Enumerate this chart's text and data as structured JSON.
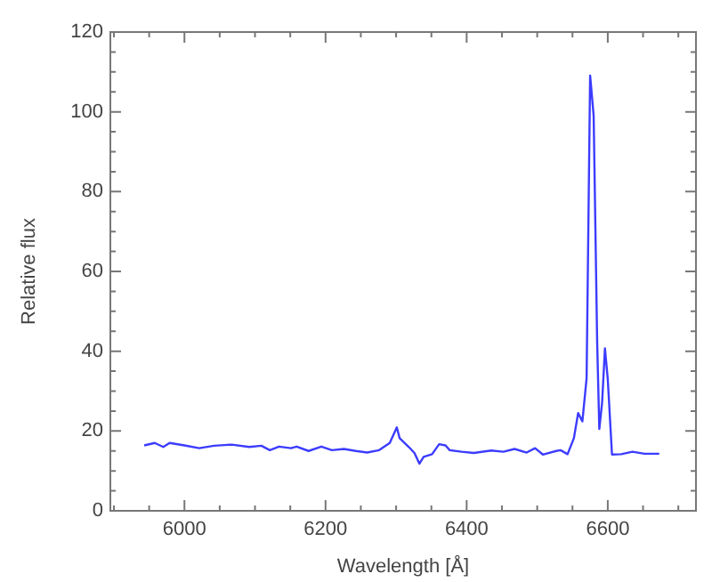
{
  "chart_data": {
    "type": "line",
    "xlabel": "Wavelength [Å]",
    "ylabel": "Relative flux",
    "xlim": [
      5895,
      6725
    ],
    "ylim": [
      0,
      120
    ],
    "xticks": [
      {
        "value": 5900,
        "label": null
      },
      {
        "value": 5950,
        "label": null
      },
      6000,
      {
        "value": 6050,
        "label": null
      },
      {
        "value": 6100,
        "label": null
      },
      {
        "value": 6150,
        "label": null
      },
      6200,
      {
        "value": 6250,
        "label": null
      },
      {
        "value": 6300,
        "label": null
      },
      {
        "value": 6350,
        "label": null
      },
      6400,
      {
        "value": 6450,
        "label": null
      },
      {
        "value": 6500,
        "label": null
      },
      {
        "value": 6550,
        "label": null
      },
      6600,
      {
        "value": 6650,
        "label": null
      },
      {
        "value": 6700,
        "label": null
      }
    ],
    "yticks": [
      0,
      {
        "value": 5,
        "label": null
      },
      {
        "value": 10,
        "label": null
      },
      {
        "value": 15,
        "label": null
      },
      20,
      {
        "value": 25,
        "label": null
      },
      {
        "value": 30,
        "label": null
      },
      {
        "value": 35,
        "label": null
      },
      40,
      {
        "value": 45,
        "label": null
      },
      {
        "value": 50,
        "label": null
      },
      {
        "value": 55,
        "label": null
      },
      60,
      {
        "value": 65,
        "label": null
      },
      {
        "value": 70,
        "label": null
      },
      {
        "value": 75,
        "label": null
      },
      80,
      {
        "value": 85,
        "label": null
      },
      {
        "value": 90,
        "label": null
      },
      {
        "value": 95,
        "label": null
      },
      100,
      {
        "value": 105,
        "label": null
      },
      {
        "value": 110,
        "label": null
      },
      {
        "value": 115,
        "label": null
      },
      120
    ],
    "grid": false,
    "legend": false,
    "marker": "none",
    "line_style": "solid",
    "series": [
      {
        "color": "#3c3cff",
        "x": [
          5943,
          5958,
          5970,
          5979,
          6000,
          6021,
          6042,
          6067,
          6092,
          6109,
          6121,
          6134,
          6151,
          6159,
          6176,
          6194,
          6209,
          6226,
          6243,
          6259,
          6276,
          6291,
          6301,
          6305,
          6318,
          6326,
          6333,
          6339,
          6351,
          6361,
          6370,
          6376,
          6393,
          6410,
          6435,
          6452,
          6468,
          6485,
          6497,
          6508,
          6527,
          6533,
          6543,
          6552,
          6558,
          6564,
          6570,
          6575,
          6580,
          6585,
          6588,
          6592,
          6596,
          6600,
          6606,
          6619,
          6635,
          6652,
          6673
        ],
        "values": [
          16.4,
          17.0,
          16.0,
          17.0,
          16.4,
          15.7,
          16.3,
          16.6,
          16.0,
          16.3,
          15.2,
          16.1,
          15.7,
          16.1,
          15.0,
          16.1,
          15.2,
          15.5,
          15.0,
          14.6,
          15.2,
          17.0,
          20.9,
          18.2,
          16.0,
          14.5,
          11.8,
          13.5,
          14.2,
          16.7,
          16.4,
          15.2,
          14.8,
          14.5,
          15.1,
          14.8,
          15.5,
          14.6,
          15.7,
          14.1,
          15.0,
          15.2,
          14.2,
          18.2,
          24.5,
          22.4,
          33.2,
          109.1,
          99,
          42,
          20.5,
          27.2,
          40.7,
          33,
          14.1,
          14.2,
          14.8,
          14.3,
          14.3
        ]
      }
    ]
  }
}
